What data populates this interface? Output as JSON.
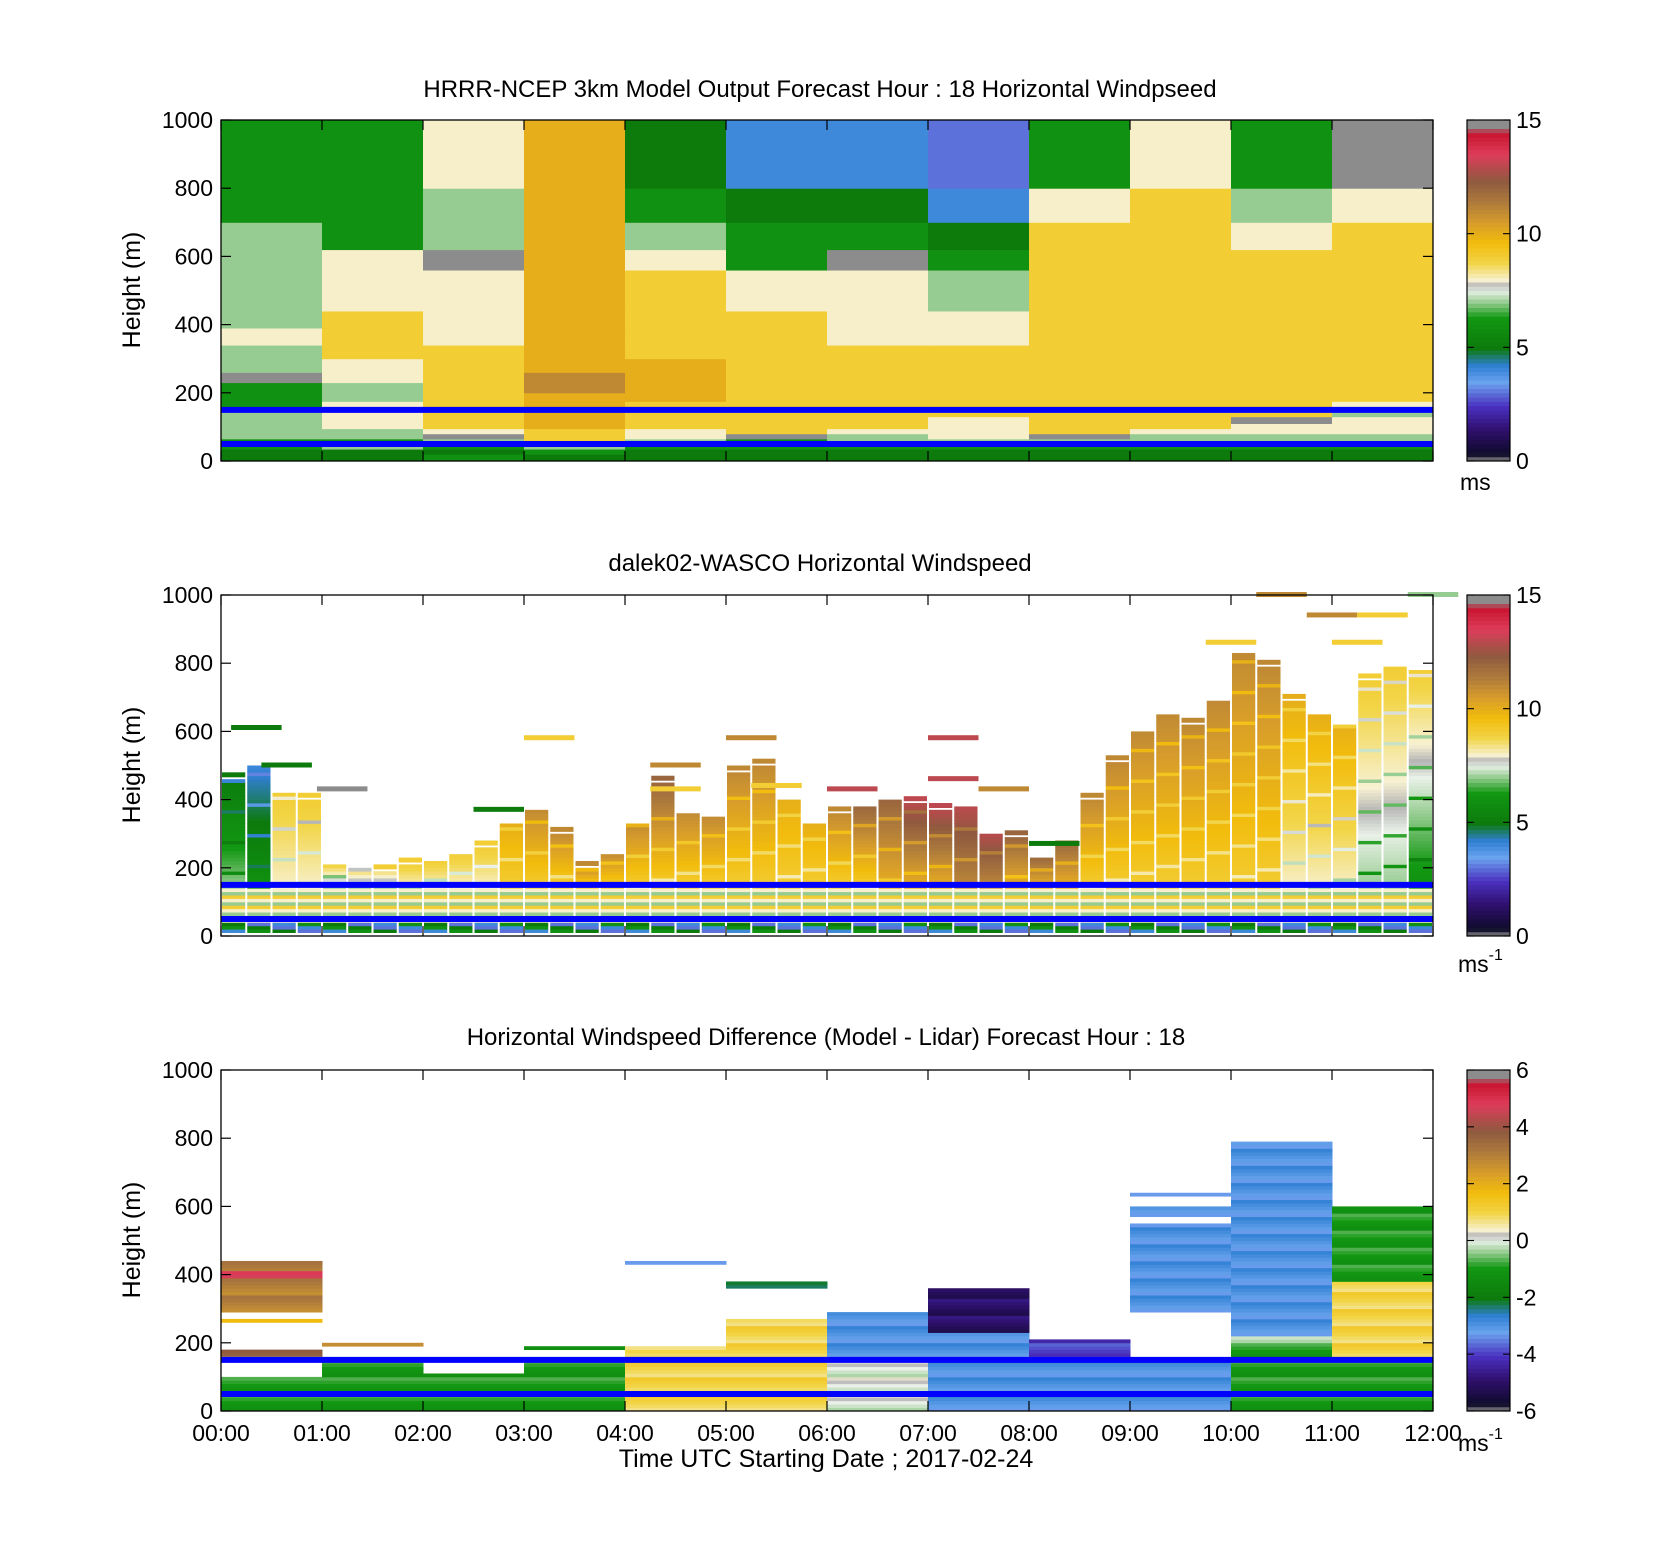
{
  "figure": {
    "xlabel": "Time UTC  Starting Date ; 2017-02-24",
    "x_ticks": [
      "00:00",
      "01:00",
      "02:00",
      "03:00",
      "04:00",
      "05:00",
      "06:00",
      "07:00",
      "08:00",
      "09:00",
      "10:00",
      "11:00",
      "12:00"
    ],
    "reference_heights_m": [
      150,
      50
    ],
    "reference_line_color": "#0000ff"
  },
  "chart_data": [
    {
      "type": "heatmap",
      "title": "HRRR-NCEP 3km Model Output   Forecast Hour : 18 Horizontal Windpseed",
      "ylabel": "Height (m)",
      "ylim": [
        0,
        1000
      ],
      "y_ticks": [
        "0",
        "200",
        "400",
        "600",
        "800",
        "1000"
      ],
      "x_range_hours": [
        0,
        12
      ],
      "colorbar": {
        "range": [
          0,
          15
        ],
        "ticks": [
          "0",
          "5",
          "10",
          "15"
        ],
        "unit": "ms"
      },
      "time_bins_hours": [
        0,
        1,
        2,
        3,
        4,
        5,
        6,
        7,
        8,
        9,
        10,
        11,
        12
      ],
      "height_bins_m": [
        0,
        20,
        35,
        50,
        65,
        80,
        95,
        110,
        130,
        150,
        175,
        200,
        230,
        260,
        300,
        340,
        390,
        440,
        500,
        560,
        620,
        700,
        800,
        900,
        1000
      ],
      "values": [
        [
          5,
          5,
          6,
          5,
          5,
          5,
          5,
          5,
          5,
          5,
          5,
          5
        ],
        [
          5,
          5,
          5,
          6,
          5,
          5,
          5,
          5,
          5,
          5,
          5,
          5
        ],
        [
          6,
          7,
          6,
          7,
          6,
          6,
          6,
          6,
          6,
          6,
          6,
          6
        ],
        [
          6,
          6,
          7,
          9,
          7,
          6,
          7,
          7,
          7,
          7,
          7,
          7
        ],
        [
          7,
          7,
          0,
          9,
          8,
          0,
          7,
          8,
          0,
          7,
          7,
          7
        ],
        [
          7,
          7,
          8,
          9,
          8,
          9,
          8,
          8,
          9,
          8,
          8,
          8
        ],
        [
          7,
          8,
          9,
          10,
          9,
          9,
          9,
          8,
          9,
          9,
          8,
          8
        ],
        [
          7,
          8,
          9,
          10,
          9,
          9,
          9,
          8,
          9,
          9,
          0,
          8
        ],
        [
          7,
          8,
          9,
          10,
          9,
          9,
          9,
          9,
          9,
          9,
          9,
          7
        ],
        [
          6,
          8,
          9,
          10,
          9,
          9,
          9,
          9,
          9,
          9,
          9,
          8
        ],
        [
          6,
          7,
          9,
          10,
          10,
          9,
          9,
          9,
          9,
          9,
          9,
          9
        ],
        [
          6,
          7,
          9,
          11,
          10,
          9,
          9,
          9,
          9,
          9,
          9,
          9
        ],
        [
          0,
          8,
          9,
          11,
          10,
          9,
          9,
          9,
          9,
          9,
          9,
          9
        ],
        [
          7,
          8,
          9,
          10,
          10,
          9,
          9,
          9,
          9,
          9,
          9,
          9
        ],
        [
          7,
          9,
          9,
          10,
          9,
          9,
          9,
          9,
          9,
          9,
          9,
          9
        ],
        [
          8,
          9,
          8,
          10,
          9,
          9,
          8,
          8,
          9,
          9,
          9,
          9
        ],
        [
          7,
          9,
          8,
          10,
          9,
          9,
          8,
          8,
          9,
          9,
          9,
          9
        ],
        [
          7,
          8,
          8,
          10,
          9,
          8,
          8,
          7,
          9,
          9,
          9,
          9
        ],
        [
          7,
          8,
          8,
          10,
          9,
          8,
          8,
          7,
          9,
          9,
          9,
          9
        ],
        [
          7,
          8,
          0,
          10,
          8,
          6,
          0,
          6,
          9,
          9,
          9,
          9
        ],
        [
          7,
          6,
          7,
          10,
          7,
          6,
          6,
          5,
          9,
          9,
          8,
          9
        ],
        [
          6,
          6,
          7,
          10,
          6,
          5,
          5,
          4,
          8,
          9,
          7,
          8
        ],
        [
          6,
          6,
          8,
          10,
          5,
          4,
          4,
          3,
          6,
          8,
          6,
          0
        ],
        [
          6,
          6,
          8,
          10,
          5,
          4,
          4,
          3,
          6,
          8,
          6,
          0
        ]
      ]
    },
    {
      "type": "heatmap",
      "title": "dalek02-WASCO  Horizontal Windspeed",
      "ylabel": "Height (m)",
      "ylim": [
        0,
        1000
      ],
      "y_ticks": [
        "0",
        "200",
        "400",
        "600",
        "800",
        "1000"
      ],
      "x_range_hours": [
        0,
        12
      ],
      "colorbar": {
        "range": [
          0,
          15
        ],
        "ticks": [
          "0",
          "5",
          "10",
          "15"
        ],
        "unit": "ms",
        "unit_superscript": "-1"
      },
      "time_bins_hours": [
        0,
        0.25,
        0.5,
        0.75,
        1,
        1.25,
        1.5,
        1.75,
        2,
        2.25,
        2.5,
        2.75,
        3,
        3.25,
        3.5,
        3.75,
        4,
        4.25,
        4.5,
        4.75,
        5,
        5.25,
        5.5,
        5.75,
        6,
        6.25,
        6.5,
        6.75,
        7,
        7.25,
        7.5,
        7.75,
        8,
        8.25,
        8.5,
        8.75,
        9,
        9.25,
        9.5,
        9.75,
        10,
        10.25,
        10.5,
        10.75,
        11,
        11.25,
        11.5,
        11.75,
        12
      ],
      "profile_top_m": [
        460,
        500,
        420,
        400,
        210,
        200,
        190,
        210,
        220,
        240,
        260,
        330,
        370,
        300,
        200,
        240,
        330,
        450,
        360,
        350,
        480,
        500,
        400,
        330,
        360,
        380,
        400,
        390,
        370,
        380,
        300,
        290,
        230,
        280,
        400,
        510,
        600,
        650,
        620,
        690,
        830,
        790,
        690,
        650,
        620,
        750,
        790,
        780
      ],
      "low_speed_ms": [
        7,
        6,
        8,
        8,
        7,
        7,
        7,
        8,
        8,
        8,
        8,
        9,
        9,
        9,
        9,
        9,
        9,
        9,
        9,
        9,
        9,
        9,
        9,
        9,
        9,
        9,
        10,
        10,
        10,
        11,
        11,
        10,
        10,
        10,
        9,
        9,
        9,
        9,
        9,
        9,
        9,
        9,
        8,
        8,
        8,
        7,
        7,
        6
      ],
      "high_speed_ms": [
        5,
        4,
        9,
        9,
        9,
        9,
        9,
        9,
        9,
        9,
        9,
        10,
        11,
        11,
        11,
        11,
        11,
        12,
        11,
        11,
        11,
        11,
        10,
        10,
        11,
        12,
        12,
        13,
        13,
        13,
        13,
        12,
        12,
        12,
        11,
        11,
        11,
        11,
        11,
        11,
        11,
        11,
        10,
        10,
        10,
        9,
        9,
        9
      ],
      "sparse_returns": [
        {
          "t": 0.1,
          "height_m": 610,
          "speed_ms": 5
        },
        {
          "t": 0.4,
          "height_m": 500,
          "speed_ms": 5
        },
        {
          "t": 0.95,
          "height_m": 430,
          "speed_ms": 0
        },
        {
          "t": 2.5,
          "height_m": 370,
          "speed_ms": 5
        },
        {
          "t": 3.0,
          "height_m": 580,
          "speed_ms": 9
        },
        {
          "t": 4.25,
          "height_m": 500,
          "speed_ms": 11
        },
        {
          "t": 4.25,
          "height_m": 430,
          "speed_ms": 9
        },
        {
          "t": 5.0,
          "height_m": 580,
          "speed_ms": 11
        },
        {
          "t": 5.25,
          "height_m": 440,
          "speed_ms": 9
        },
        {
          "t": 6.0,
          "height_m": 430,
          "speed_ms": 13
        },
        {
          "t": 7.0,
          "height_m": 580,
          "speed_ms": 13
        },
        {
          "t": 7.0,
          "height_m": 460,
          "speed_ms": 13
        },
        {
          "t": 7.5,
          "height_m": 430,
          "speed_ms": 11
        },
        {
          "t": 8.0,
          "height_m": 270,
          "speed_ms": 5
        },
        {
          "t": 9.75,
          "height_m": 860,
          "speed_ms": 9
        },
        {
          "t": 10.25,
          "height_m": 1000,
          "speed_ms": 11
        },
        {
          "t": 10.75,
          "height_m": 940,
          "speed_ms": 11
        },
        {
          "t": 11.0,
          "height_m": 860,
          "speed_ms": 9
        },
        {
          "t": 11.25,
          "height_m": 940,
          "speed_ms": 9
        },
        {
          "t": 11.75,
          "height_m": 1000,
          "speed_ms": 7
        }
      ]
    },
    {
      "type": "heatmap",
      "title": "Horizontal Windspeed Difference (Model - Lidar) Forecast Hour : 18",
      "ylabel": "Height (m)",
      "xlabel": "Time UTC  Starting Date ; 2017-02-24",
      "ylim": [
        0,
        1000
      ],
      "y_ticks": [
        "0",
        "200",
        "400",
        "600",
        "800",
        "1000"
      ],
      "x_range_hours": [
        0,
        12
      ],
      "colorbar": {
        "range": [
          -6,
          6
        ],
        "ticks": [
          "-6",
          "-4",
          "-2",
          "0",
          "2",
          "4",
          "6"
        ],
        "unit": "ms",
        "unit_superscript": "-1"
      },
      "segments": [
        {
          "t0": 0,
          "t1": 1,
          "h0": 0,
          "h1": 100,
          "value": -1
        },
        {
          "t0": 0,
          "t1": 1,
          "h0": 160,
          "h1": 180,
          "value": 4
        },
        {
          "t0": 0,
          "t1": 1,
          "h0": 260,
          "h1": 270,
          "value": 2
        },
        {
          "t0": 0,
          "t1": 1,
          "h0": 290,
          "h1": 440,
          "value": 3
        },
        {
          "t0": 0,
          "t1": 1,
          "h0": 390,
          "h1": 410,
          "value": 5
        },
        {
          "t0": 1,
          "t1": 2,
          "h0": 0,
          "h1": 150,
          "value": -1
        },
        {
          "t0": 1,
          "t1": 2,
          "h0": 190,
          "h1": 200,
          "value": 3
        },
        {
          "t0": 2,
          "t1": 3,
          "h0": 0,
          "h1": 110,
          "value": -1
        },
        {
          "t0": 3,
          "t1": 4,
          "h0": 0,
          "h1": 150,
          "value": -1
        },
        {
          "t0": 3,
          "t1": 4,
          "h0": 180,
          "h1": 190,
          "value": -1
        },
        {
          "t0": 4,
          "t1": 5,
          "h0": 0,
          "h1": 180,
          "value": 1
        },
        {
          "t0": 4,
          "t1": 5,
          "h0": 180,
          "h1": 190,
          "value": 1
        },
        {
          "t0": 4,
          "t1": 5,
          "h0": 430,
          "h1": 440,
          "value": -3
        },
        {
          "t0": 5,
          "t1": 6,
          "h0": 0,
          "h1": 270,
          "value": 1
        },
        {
          "t0": 5,
          "t1": 6,
          "h0": 360,
          "h1": 380,
          "value": -2
        },
        {
          "t0": 6,
          "t1": 7,
          "h0": 0,
          "h1": 150,
          "value": 0
        },
        {
          "t0": 6,
          "t1": 7,
          "h0": 150,
          "h1": 290,
          "value": -3
        },
        {
          "t0": 7,
          "t1": 8,
          "h0": 0,
          "h1": 230,
          "value": -3
        },
        {
          "t0": 7,
          "t1": 8,
          "h0": 230,
          "h1": 360,
          "value": -5
        },
        {
          "t0": 8,
          "t1": 9,
          "h0": 0,
          "h1": 150,
          "value": -3
        },
        {
          "t0": 8,
          "t1": 9,
          "h0": 150,
          "h1": 210,
          "value": -4
        },
        {
          "t0": 9,
          "t1": 10,
          "h0": 0,
          "h1": 150,
          "value": -3
        },
        {
          "t0": 9,
          "t1": 10,
          "h0": 290,
          "h1": 550,
          "value": -3
        },
        {
          "t0": 9,
          "t1": 10,
          "h0": 570,
          "h1": 600,
          "value": -3
        },
        {
          "t0": 9,
          "t1": 10,
          "h0": 630,
          "h1": 640,
          "value": -3
        },
        {
          "t0": 10,
          "t1": 11,
          "h0": 0,
          "h1": 200,
          "value": -1
        },
        {
          "t0": 10,
          "t1": 11,
          "h0": 200,
          "h1": 220,
          "value": 0
        },
        {
          "t0": 10,
          "t1": 11,
          "h0": 220,
          "h1": 790,
          "value": -3
        },
        {
          "t0": 11,
          "t1": 12,
          "h0": 0,
          "h1": 150,
          "value": -1
        },
        {
          "t0": 11,
          "t1": 12,
          "h0": 150,
          "h1": 380,
          "value": 1
        },
        {
          "t0": 11,
          "t1": 12,
          "h0": 380,
          "h1": 600,
          "value": -1
        }
      ]
    }
  ]
}
